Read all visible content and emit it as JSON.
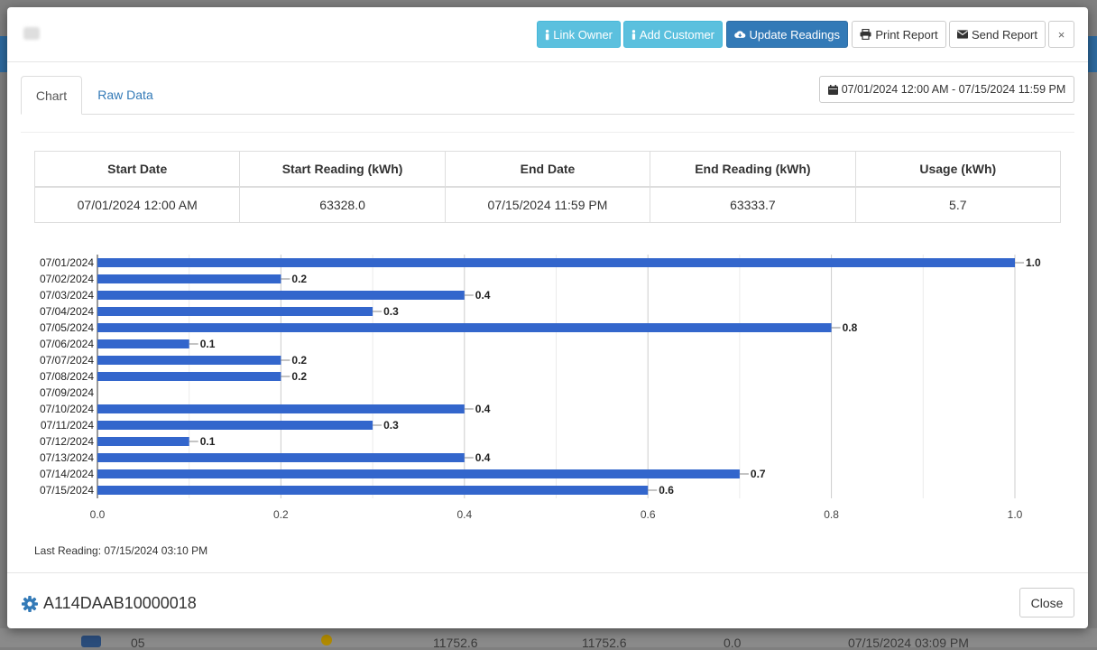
{
  "header": {
    "buttons": {
      "link_owner": "Link Owner",
      "add_customer": "Add Customer",
      "update_readings": "Update Readings",
      "print_report": "Print Report",
      "send_report": "Send Report",
      "close_x": "×"
    }
  },
  "tabs": {
    "chart": "Chart",
    "raw_data": "Raw Data"
  },
  "date_range": "07/01/2024 12:00 AM - 07/15/2024 11:59 PM",
  "summary": {
    "headers": [
      "Start Date",
      "Start Reading (kWh)",
      "End Date",
      "End Reading (kWh)",
      "Usage (kWh)"
    ],
    "row": [
      "07/01/2024 12:00 AM",
      "63328.0",
      "07/15/2024 11:59 PM",
      "63333.7",
      "5.7"
    ]
  },
  "chart_data": {
    "type": "bar",
    "orientation": "horizontal",
    "categories": [
      "07/01/2024",
      "07/02/2024",
      "07/03/2024",
      "07/04/2024",
      "07/05/2024",
      "07/06/2024",
      "07/07/2024",
      "07/08/2024",
      "07/09/2024",
      "07/10/2024",
      "07/11/2024",
      "07/12/2024",
      "07/13/2024",
      "07/14/2024",
      "07/15/2024"
    ],
    "values": [
      1.0,
      0.2,
      0.4,
      0.3,
      0.8,
      0.1,
      0.2,
      0.2,
      0,
      0.4,
      0.3,
      0.1,
      0.4,
      0.7,
      0.6
    ],
    "xlim": [
      0,
      1.0
    ],
    "xticks": [
      "0.0",
      "0.2",
      "0.4",
      "0.6",
      "0.8",
      "1.0"
    ],
    "grid": true,
    "bar_color": "#3366cc"
  },
  "last_reading": "Last Reading: 07/15/2024 03:10 PM",
  "footer": {
    "device_id": "A114DAAB10000018",
    "close_label": "Close"
  },
  "background_row": [
    "05",
    "11752.6",
    "11752.6",
    "0.0",
    "07/15/2024 03:09 PM"
  ],
  "colors": {
    "primary": "#337ab7",
    "info": "#5bc0de",
    "accent": "#2d6a9f"
  }
}
